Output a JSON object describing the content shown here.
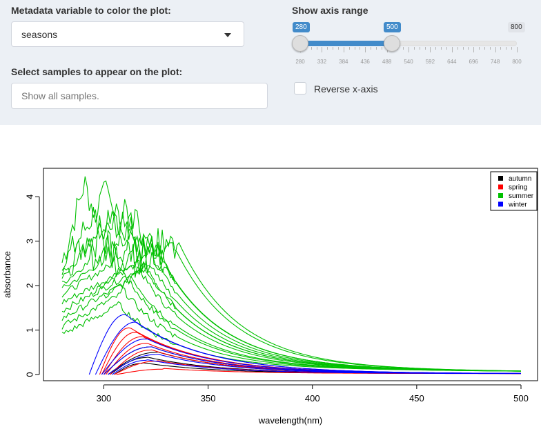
{
  "color_select": {
    "label": "Metadata variable to color the plot:",
    "value": "seasons"
  },
  "sample_select": {
    "label": "Select samples to appear on the plot:",
    "placeholder": "Show all samples."
  },
  "axis_range": {
    "label": "Show axis range",
    "min": 280,
    "max": 800,
    "from": 280,
    "to": 500,
    "from_label": "280",
    "to_label": "500",
    "max_label": "800",
    "tick_labels": [
      "280",
      "332",
      "384",
      "436",
      "488",
      "540",
      "592",
      "644",
      "696",
      "748",
      "800"
    ]
  },
  "reverse_axis": {
    "label": "Reverse x-axis",
    "checked": false
  },
  "chart_data": {
    "type": "line",
    "xlabel": "wavelength(nm)",
    "ylabel": "absorbance",
    "xlim": [
      280,
      500
    ],
    "ylim": [
      0,
      4.5
    ],
    "x_ticks": [
      "300",
      "350",
      "400",
      "450",
      "500"
    ],
    "y_ticks": [
      "0",
      "1",
      "2",
      "3",
      "4"
    ],
    "legend_position": "top-right",
    "series": [
      {
        "name": "autumn",
        "color": "#000000",
        "sample_curves": [
          {
            "peak_x": 322,
            "peak_y": 0.62,
            "start_x": 300
          },
          {
            "peak_x": 325,
            "peak_y": 0.5,
            "start_x": 302
          },
          {
            "peak_x": 320,
            "peak_y": 0.38,
            "start_x": 303
          },
          {
            "peak_x": 318,
            "peak_y": 0.25,
            "start_x": 305
          }
        ]
      },
      {
        "name": "spring",
        "color": "#ff0000",
        "sample_curves": [
          {
            "peak_x": 312,
            "peak_y": 1.05,
            "start_x": 298
          },
          {
            "peak_x": 315,
            "peak_y": 0.95,
            "start_x": 299
          },
          {
            "peak_x": 318,
            "peak_y": 0.85,
            "start_x": 300
          },
          {
            "peak_x": 320,
            "peak_y": 0.7,
            "start_x": 301
          },
          {
            "peak_x": 322,
            "peak_y": 0.55,
            "start_x": 303
          },
          {
            "peak_x": 325,
            "peak_y": 0.3,
            "start_x": 305
          },
          {
            "peak_x": 328,
            "peak_y": 0.12,
            "start_x": 306
          }
        ]
      },
      {
        "name": "summer",
        "color": "#00c000",
        "sample_curves": [
          {
            "peak_x": 290,
            "peak_y": 4.2,
            "start_x": 280
          },
          {
            "peak_x": 300,
            "peak_y": 4.0,
            "start_x": 280
          },
          {
            "peak_x": 305,
            "peak_y": 3.8,
            "start_x": 280
          },
          {
            "peak_x": 310,
            "peak_y": 3.6,
            "start_x": 280
          },
          {
            "peak_x": 315,
            "peak_y": 3.4,
            "start_x": 280
          },
          {
            "peak_x": 320,
            "peak_y": 3.2,
            "start_x": 280
          },
          {
            "peak_x": 322,
            "peak_y": 3.0,
            "start_x": 280
          },
          {
            "peak_x": 325,
            "peak_y": 2.7,
            "start_x": 280
          },
          {
            "peak_x": 318,
            "peak_y": 2.4,
            "start_x": 280
          },
          {
            "peak_x": 312,
            "peak_y": 2.1,
            "start_x": 280
          },
          {
            "peak_x": 308,
            "peak_y": 1.8,
            "start_x": 280
          },
          {
            "peak_x": 330,
            "peak_y": 3.1,
            "start_x": 295
          },
          {
            "peak_x": 335,
            "peak_y": 2.9,
            "start_x": 300
          },
          {
            "peak_x": 305,
            "peak_y": 1.5,
            "start_x": 280
          }
        ]
      },
      {
        "name": "winter",
        "color": "#0000ff",
        "sample_curves": [
          {
            "peak_x": 310,
            "peak_y": 1.35,
            "start_x": 293
          },
          {
            "peak_x": 315,
            "peak_y": 1.18,
            "start_x": 296
          },
          {
            "peak_x": 320,
            "peak_y": 0.8,
            "start_x": 299
          },
          {
            "peak_x": 322,
            "peak_y": 0.62,
            "start_x": 300
          },
          {
            "peak_x": 325,
            "peak_y": 0.45,
            "start_x": 302
          },
          {
            "peak_x": 320,
            "peak_y": 0.32,
            "start_x": 304
          }
        ]
      }
    ]
  }
}
